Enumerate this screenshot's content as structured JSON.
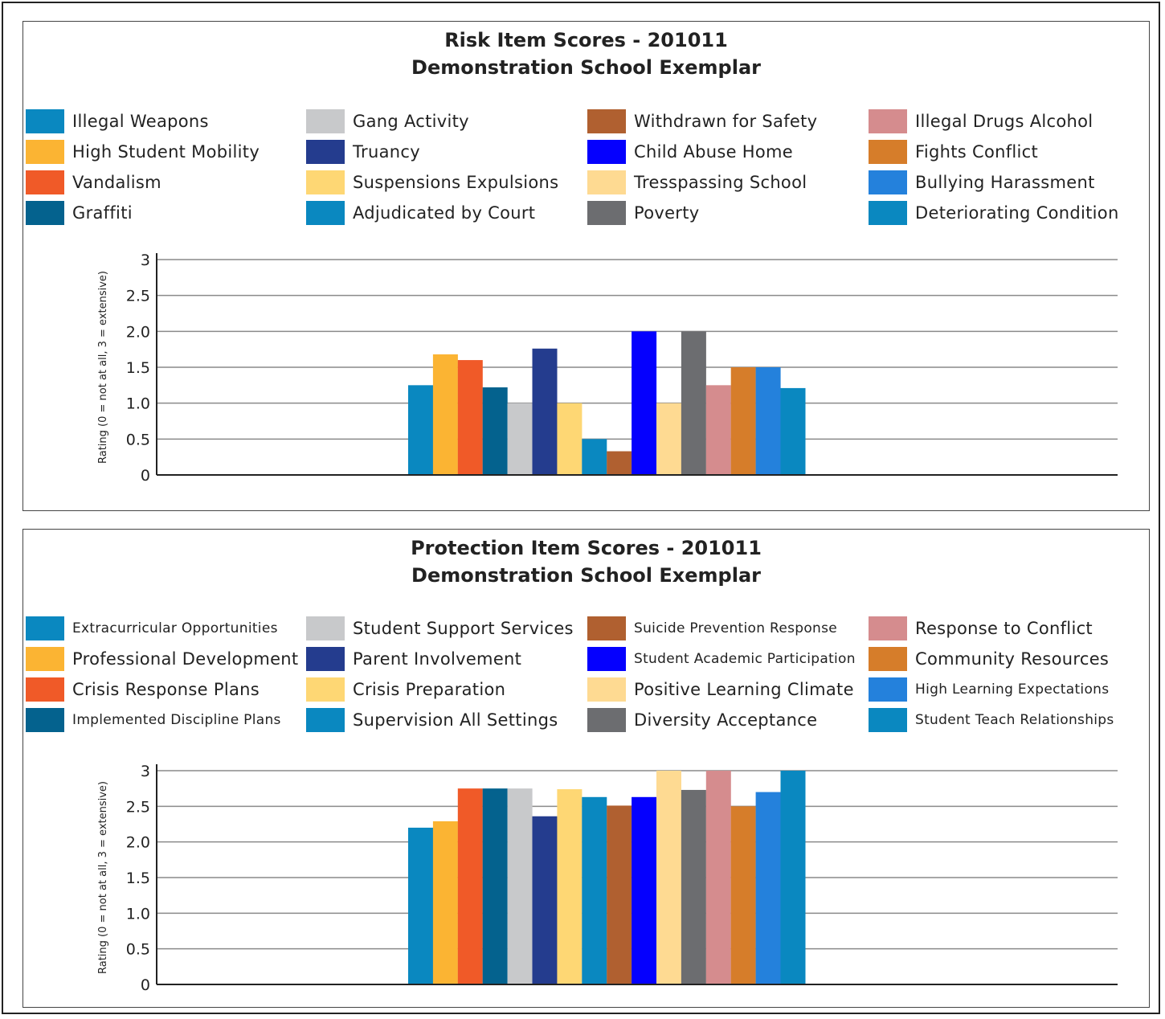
{
  "chart_data": [
    {
      "type": "bar",
      "title": "Risk Item Scores - 201011",
      "subtitle": "Demonstration School Exemplar",
      "ylabel": "Rating (0 = not at all, 3 = extensive)",
      "ylim": [
        0,
        3
      ],
      "yticks": [
        "0",
        "0.5",
        "1.0",
        "1.5",
        "2.0",
        "2.5",
        "3"
      ],
      "grid": true,
      "legend_position": "top",
      "categories": [
        "Illegal Weapons",
        "High Student Mobility",
        "Vandalism",
        "Graffiti",
        "Gang Activity",
        "Truancy",
        "Suspensions Expulsions",
        "Adjudicated by Court",
        "Withdrawn for Safety",
        "Child Abuse Home",
        "Tresspassing School",
        "Poverty",
        "Illegal Drugs Alcohol",
        "Fights Conflict",
        "Bullying Harassment",
        "Deteriorating Condition"
      ],
      "values": [
        1.25,
        1.68,
        1.6,
        1.22,
        1.0,
        1.76,
        1.0,
        0.5,
        0.33,
        2.0,
        1.0,
        2.0,
        1.25,
        1.5,
        1.5,
        1.21
      ],
      "colors": [
        "#0a88c0",
        "#fbb433",
        "#f05a28",
        "#04628e",
        "#c8c9cb",
        "#243c8e",
        "#fed774",
        "#0a88c0",
        "#b06030",
        "#0500fe",
        "#feda92",
        "#6c6d70",
        "#d58c8e",
        "#d67d2a",
        "#2481dc",
        "#0a88c0"
      ]
    },
    {
      "type": "bar",
      "title": "Protection Item Scores - 201011",
      "subtitle": "Demonstration School Exemplar",
      "ylabel": "Rating (0 = not at all, 3 = extensive)",
      "ylim": [
        0,
        3
      ],
      "yticks": [
        "0",
        "0.5",
        "1.0",
        "1.5",
        "2.0",
        "2.5",
        "3"
      ],
      "grid": true,
      "legend_position": "top",
      "categories": [
        "Extracurricular Opportunities",
        "Professional Development",
        "Crisis Response Plans",
        "Implemented Discipline Plans",
        "Student Support Services",
        "Parent Involvement",
        "Crisis Preparation",
        "Supervision All Settings",
        "Suicide Prevention Response",
        "Student Academic Participation",
        "Positive Learning Climate",
        "Diversity Acceptance",
        "Response to Conflict",
        "Community Resources",
        "High Learning Expectations",
        "Student Teach Relationships"
      ],
      "values": [
        2.2,
        2.29,
        2.75,
        2.75,
        2.75,
        2.36,
        2.74,
        2.63,
        2.51,
        2.63,
        3.0,
        2.73,
        3.0,
        2.5,
        2.7,
        3.0
      ],
      "colors": [
        "#0a88c0",
        "#fbb433",
        "#f05a28",
        "#04628e",
        "#c8c9cb",
        "#243c8e",
        "#fed774",
        "#0a88c0",
        "#b06030",
        "#0500fe",
        "#feda92",
        "#6c6d70",
        "#d58c8e",
        "#d67d2a",
        "#2481dc",
        "#0a88c0"
      ]
    }
  ]
}
